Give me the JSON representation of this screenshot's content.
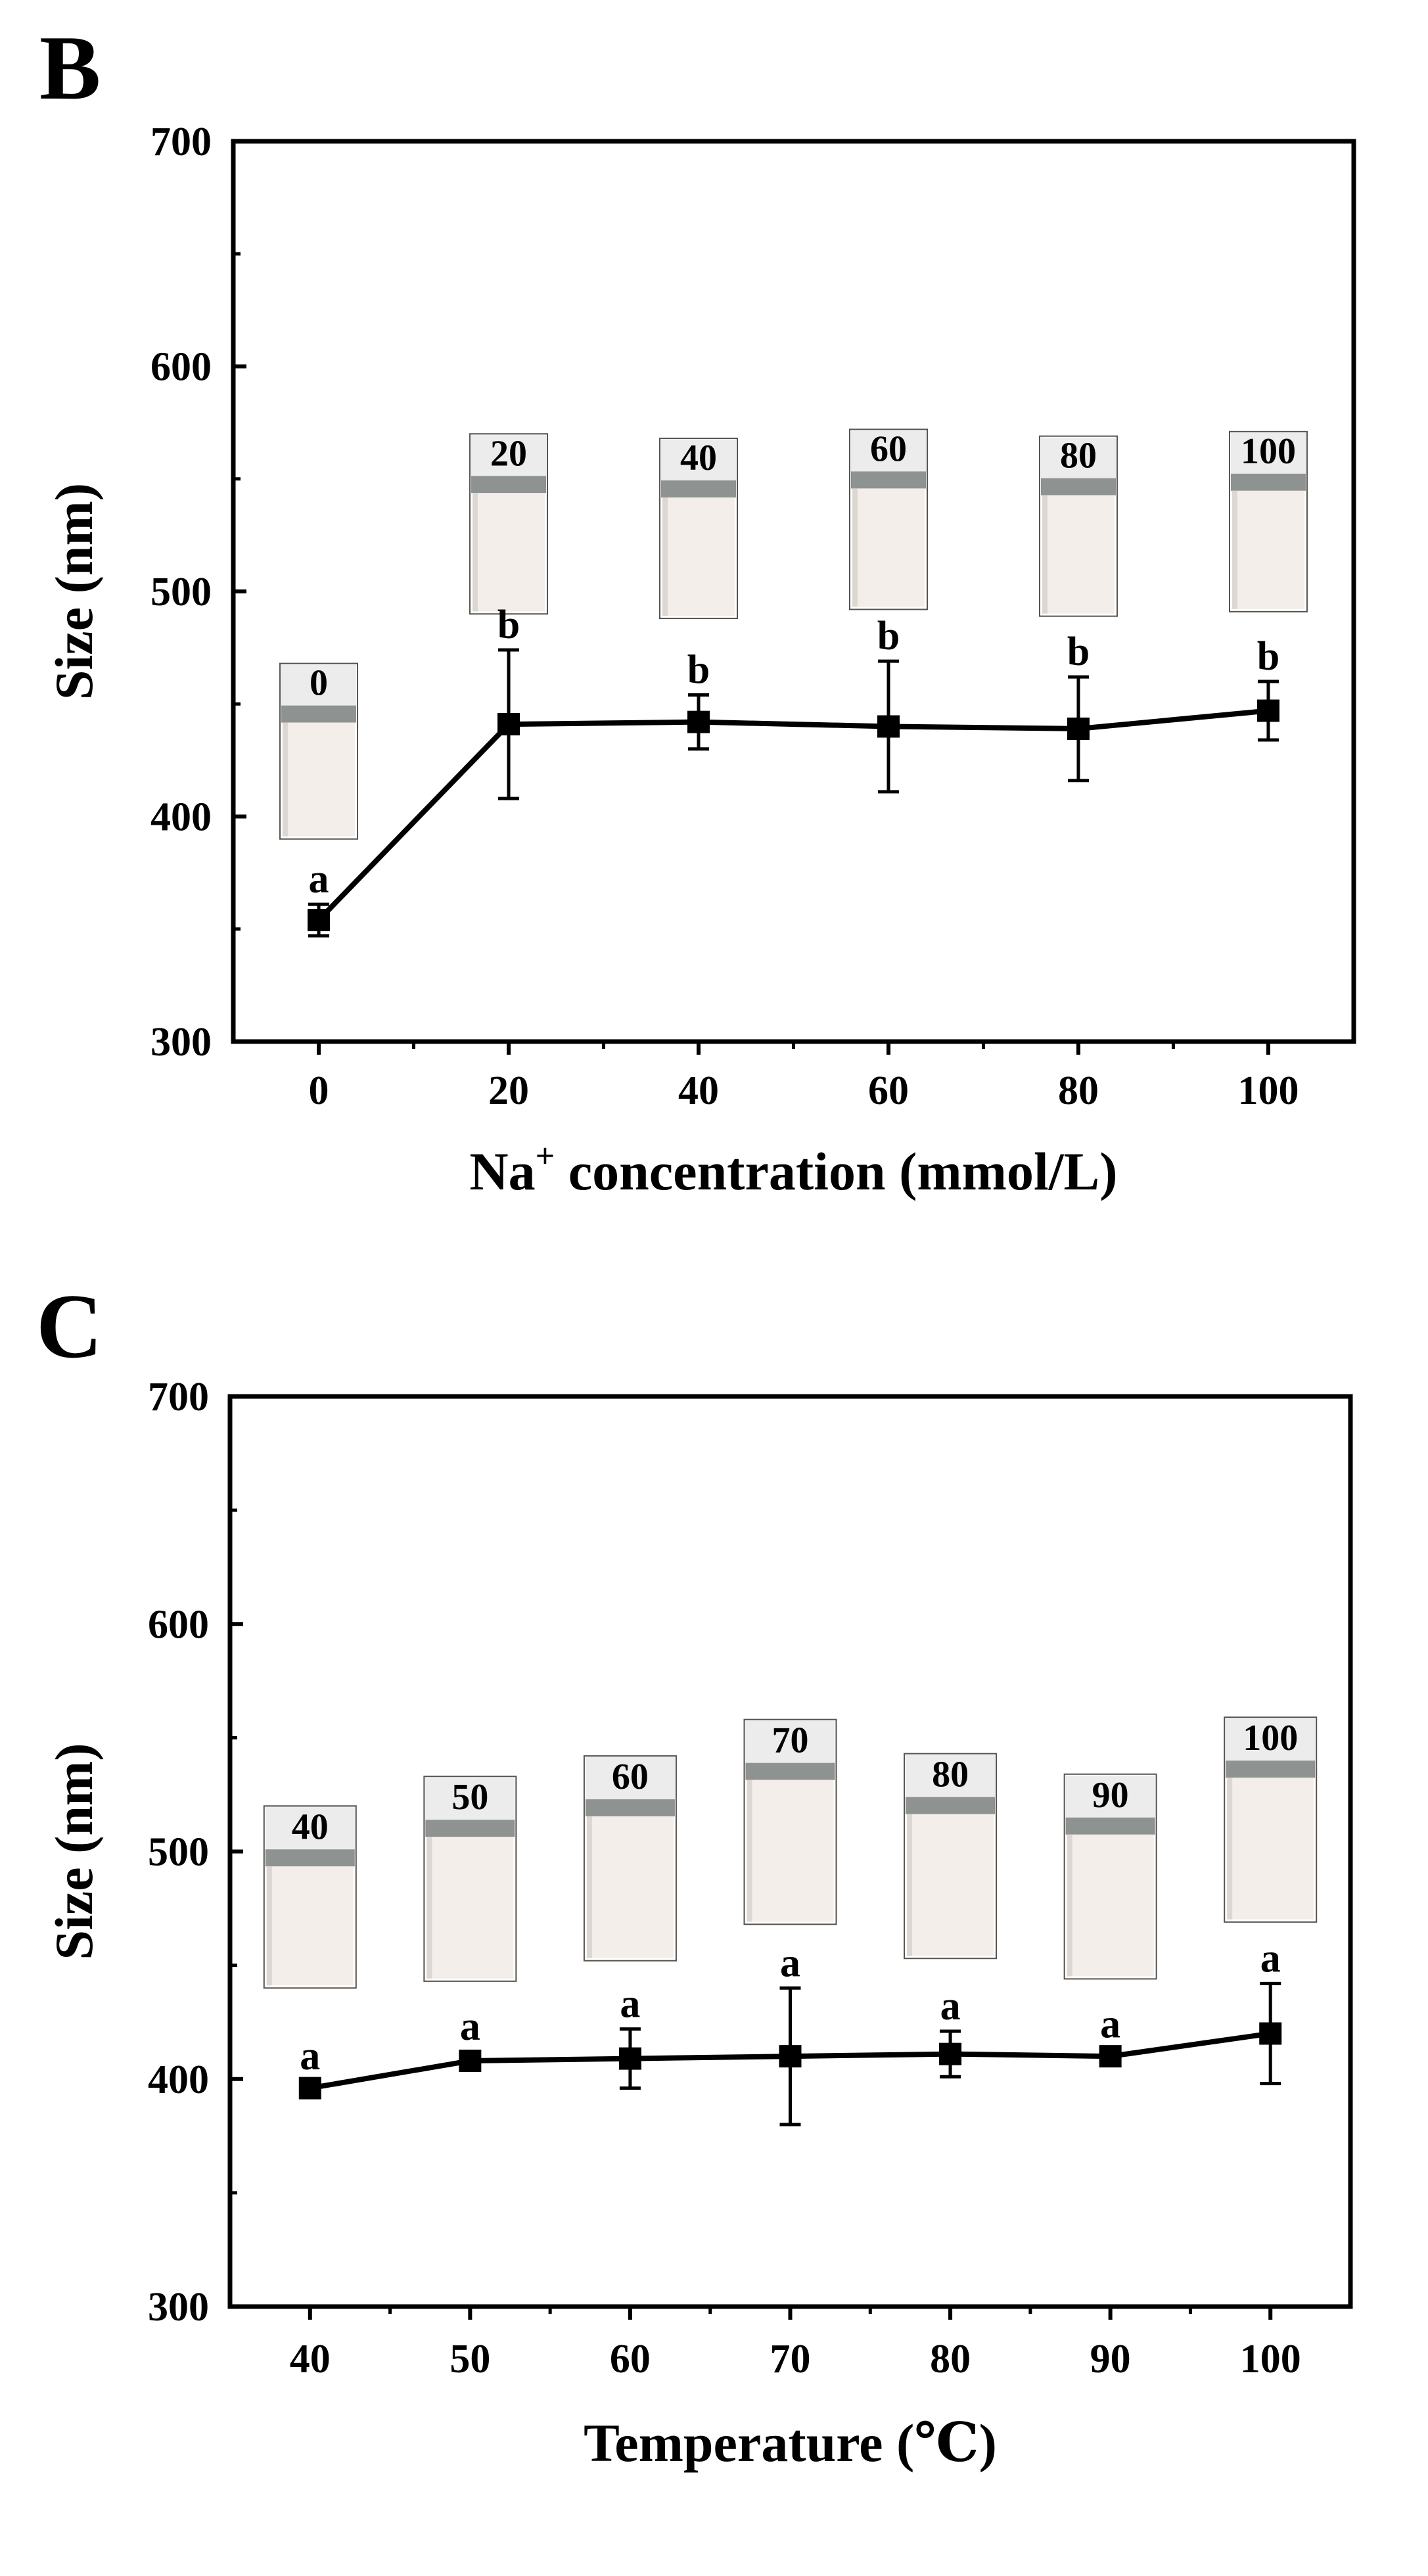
{
  "chart_data": [
    {
      "type": "line",
      "panel": "B",
      "title": "",
      "xlabel": "Na",
      "xlabel_sup": "+",
      "xlabel_rest": " concentration (mmol/L)",
      "ylabel": "Size (nm)",
      "xlim": [
        -9,
        109
      ],
      "ylim": [
        300,
        700
      ],
      "x_ticks": [
        0,
        20,
        40,
        60,
        80,
        100
      ],
      "x_tick_labels": [
        "0",
        "20",
        "40",
        "60",
        "80",
        "100"
      ],
      "y_ticks": [
        300,
        400,
        500,
        600,
        700
      ],
      "y_tick_labels": [
        "300",
        "400",
        "500",
        "600",
        "700"
      ],
      "grid": false,
      "series": [
        {
          "name": "Size",
          "x": [
            0,
            20,
            40,
            60,
            80,
            100
          ],
          "values": [
            354,
            441,
            442,
            440,
            439,
            447
          ],
          "error": [
            7,
            33,
            12,
            29,
            23,
            13
          ],
          "sig_letters": [
            "a",
            "b",
            "b",
            "b",
            "b",
            "b"
          ]
        }
      ],
      "vial_photos": [
        {
          "label": "0",
          "x": 0,
          "y_top": 468,
          "y_bottom": 390
        },
        {
          "label": "20",
          "x": 20,
          "y_top": 570,
          "y_bottom": 490
        },
        {
          "label": "40",
          "x": 40,
          "y_top": 568,
          "y_bottom": 488
        },
        {
          "label": "60",
          "x": 60,
          "y_top": 572,
          "y_bottom": 492
        },
        {
          "label": "80",
          "x": 80,
          "y_top": 569,
          "y_bottom": 489
        },
        {
          "label": "100",
          "x": 100,
          "y_top": 571,
          "y_bottom": 491
        }
      ]
    },
    {
      "type": "line",
      "panel": "C",
      "title": "",
      "xlabel": "Temperature (℃)",
      "ylabel": "Size (nm)",
      "xlim": [
        35,
        105
      ],
      "ylim": [
        300,
        700
      ],
      "x_ticks": [
        40,
        50,
        60,
        70,
        80,
        90,
        100
      ],
      "x_tick_labels": [
        "40",
        "50",
        "60",
        "70",
        "80",
        "90",
        "100"
      ],
      "y_ticks": [
        300,
        400,
        500,
        600,
        700
      ],
      "y_tick_labels": [
        "300",
        "400",
        "500",
        "600",
        "700"
      ],
      "grid": false,
      "series": [
        {
          "name": "Size",
          "x": [
            40,
            50,
            60,
            70,
            80,
            90,
            100
          ],
          "values": [
            396,
            408,
            409,
            410,
            411,
            410,
            420
          ],
          "error": [
            3,
            4,
            13,
            30,
            10,
            3,
            22
          ],
          "sig_letters": [
            "a",
            "a",
            "a",
            "a",
            "a",
            "a",
            "a"
          ]
        }
      ],
      "vial_photos": [
        {
          "label": "40",
          "x": 40,
          "y_top": 520,
          "y_bottom": 440
        },
        {
          "label": "50",
          "x": 50,
          "y_top": 533,
          "y_bottom": 443
        },
        {
          "label": "60",
          "x": 60,
          "y_top": 542,
          "y_bottom": 452
        },
        {
          "label": "70",
          "x": 70,
          "y_top": 558,
          "y_bottom": 468
        },
        {
          "label": "80",
          "x": 80,
          "y_top": 543,
          "y_bottom": 453
        },
        {
          "label": "90",
          "x": 90,
          "y_top": 534,
          "y_bottom": 444
        },
        {
          "label": "100",
          "x": 100,
          "y_top": 559,
          "y_bottom": 469
        }
      ]
    }
  ],
  "colors": {
    "axis": "#000000",
    "line": "#000000",
    "label_band": "#ececec",
    "liquid": "#f3eeea",
    "liquid_shade": "#ddd7d2",
    "headspace": "#8e9290",
    "vial_edge": "#55524f"
  }
}
